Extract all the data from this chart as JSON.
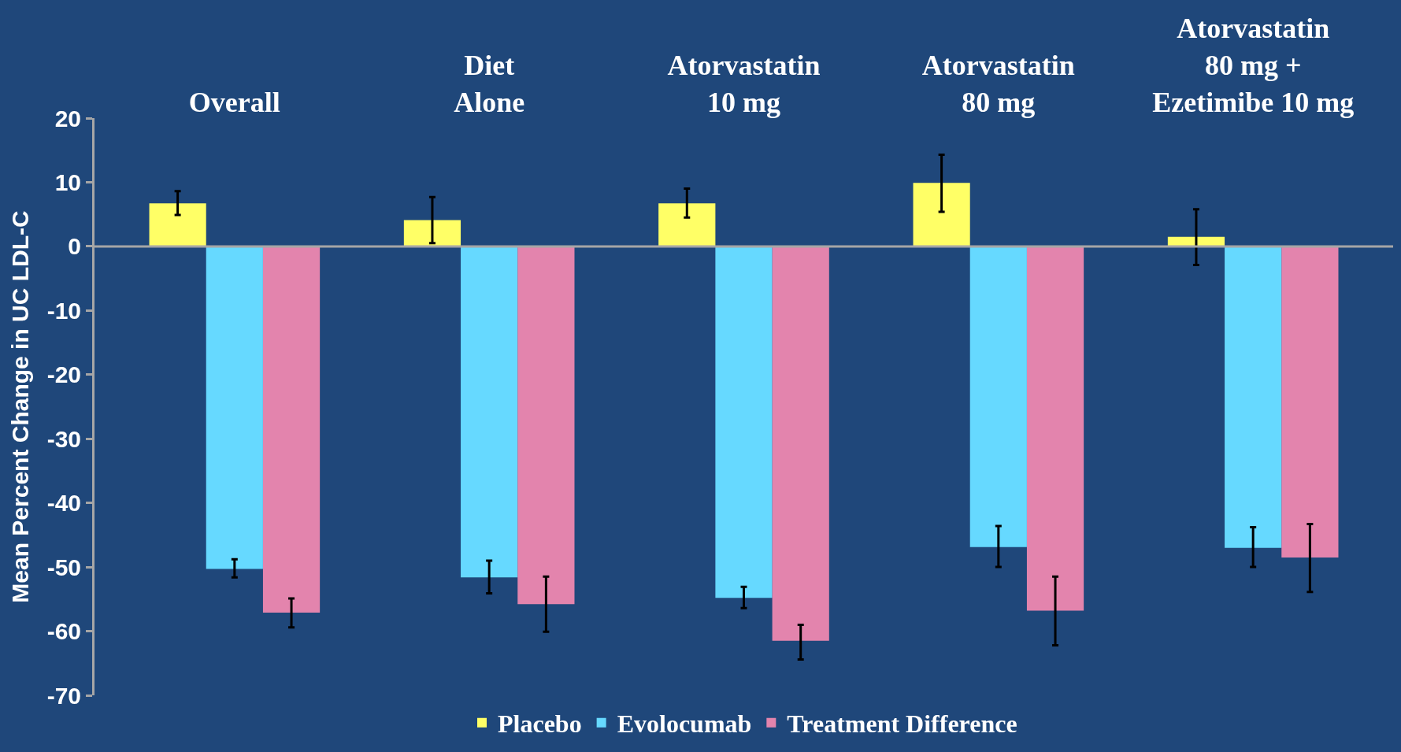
{
  "chart_data": {
    "type": "bar",
    "categories": [
      "Overall",
      "Diet\nAlone",
      "Atorvastatin\n10 mg",
      "Atorvastatin\n80 mg",
      "Atorvastatin\n80 mg +\nEzetimibe 10 mg"
    ],
    "ylabel": "Mean Percent Change in UC LDL-C",
    "series": [
      {
        "name": "Placebo",
        "color": "#ffff66",
        "values": [
          6.7,
          4.1,
          6.7,
          9.9,
          1.5
        ],
        "errors": [
          [
            4.9,
            8.6
          ],
          [
            0.5,
            7.7
          ],
          [
            4.5,
            9.0
          ],
          [
            5.4,
            14.3
          ],
          [
            -2.9,
            5.8
          ]
        ]
      },
      {
        "name": "Evolocumab",
        "color": "#66d9ff",
        "values": [
          -50.3,
          -51.6,
          -54.8,
          -46.9,
          -47.0
        ],
        "errors": [
          [
            -51.6,
            -48.8
          ],
          [
            -54.1,
            -49.0
          ],
          [
            -56.4,
            -53.1
          ],
          [
            -50.0,
            -43.6
          ],
          [
            -50.0,
            -43.8
          ]
        ]
      },
      {
        "name": "Treatment Difference",
        "color": "#e384ad",
        "values": [
          -57.1,
          -55.8,
          -61.5,
          -56.8,
          -48.5
        ],
        "errors": [
          [
            -59.4,
            -54.9
          ],
          [
            -60.1,
            -51.5
          ],
          [
            -64.4,
            -59.0
          ],
          [
            -62.2,
            -51.5
          ],
          [
            -53.9,
            -43.3
          ]
        ]
      }
    ],
    "ylim": [
      -70,
      20
    ],
    "yticks": [
      -70,
      -60,
      -50,
      -40,
      -30,
      -20,
      -10,
      0,
      10,
      20
    ],
    "ref_lines": [
      {
        "axis": "y",
        "value": 0,
        "color": "#a6a6a6"
      }
    ],
    "grid": false,
    "legend": "bottom"
  }
}
